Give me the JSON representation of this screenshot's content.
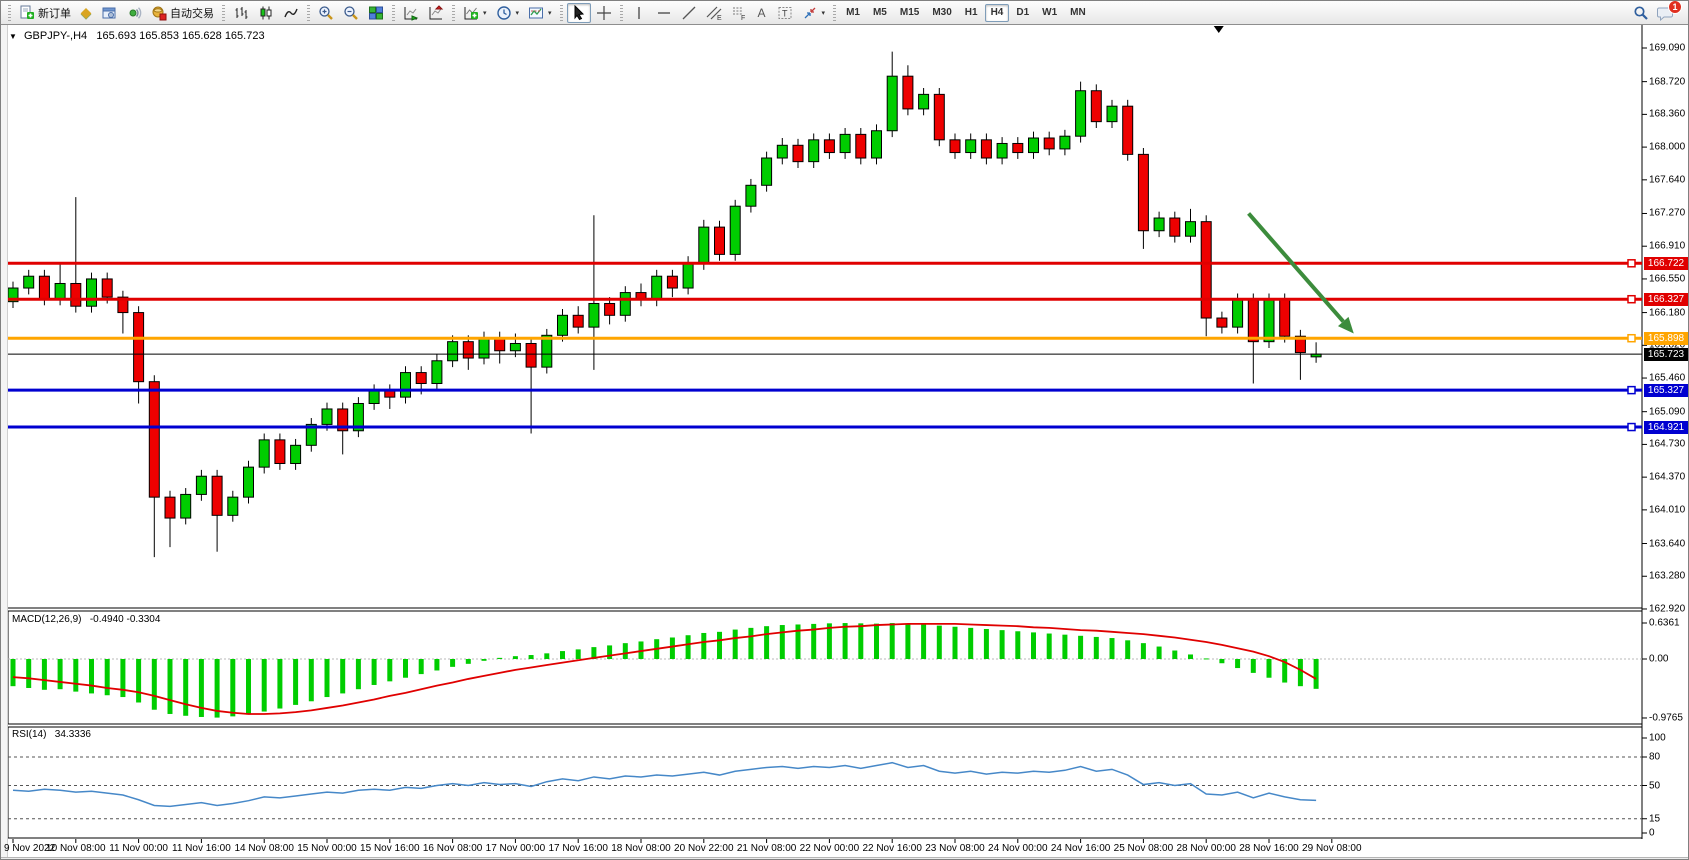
{
  "toolbar": {
    "new_order_label": "新订单",
    "auto_trading_label": "自动交易",
    "chat_badge": "1",
    "tool_letters": {
      "channel": "E",
      "fibonacci": "F",
      "text": "A",
      "text_label": "T"
    },
    "timeframes": [
      {
        "label": "M1",
        "active": false
      },
      {
        "label": "M5",
        "active": false
      },
      {
        "label": "M15",
        "active": false
      },
      {
        "label": "M30",
        "active": false
      },
      {
        "label": "H1",
        "active": false
      },
      {
        "label": "H4",
        "active": true
      },
      {
        "label": "D1",
        "active": false
      },
      {
        "label": "W1",
        "active": false
      },
      {
        "label": "MN",
        "active": false
      }
    ]
  },
  "icons": {
    "caret_down": "▼",
    "caret_small": "▾",
    "profile_glyph": "◆"
  },
  "chart": {
    "symbol": "GBPJPY-,H4",
    "ohlc": "165.693 165.853 165.628 165.723",
    "price_axis": [
      "169.090",
      "168.720",
      "168.360",
      "168.000",
      "167.640",
      "167.270",
      "166.910",
      "166.550",
      "166.180",
      "165.820",
      "165.460",
      "165.090",
      "164.730",
      "164.370",
      "164.010",
      "163.640",
      "163.280",
      "162.920"
    ],
    "hlines": [
      {
        "label": "166.722",
        "price": 166.722,
        "color": "#e00000",
        "thick": true
      },
      {
        "label": "166.327",
        "price": 166.327,
        "color": "#e00000",
        "thick": true
      },
      {
        "label": "165.898",
        "price": 165.898,
        "color": "#ffa500",
        "thick": true
      },
      {
        "label": "165.723",
        "price": 165.723,
        "color": "#000000",
        "thick": false
      },
      {
        "label": "165.327",
        "price": 165.327,
        "color": "#0000d0",
        "thick": true
      },
      {
        "label": "164.921",
        "price": 164.921,
        "color": "#0000d0",
        "thick": true
      }
    ]
  },
  "macd": {
    "label": "MACD(12,26,9)",
    "values": "-0.4940 -0.3304",
    "axis": [
      {
        "v": 0.6361,
        "label": "0.6361"
      },
      {
        "v": 0,
        "label": "0.00"
      },
      {
        "v": -0.9765,
        "label": "-0.9765"
      }
    ]
  },
  "rsi": {
    "label": "RSI(14)",
    "value": "34.3336",
    "axis": [
      {
        "v": 100,
        "label": "100",
        "dashed": false
      },
      {
        "v": 80,
        "label": "80",
        "dashed": true
      },
      {
        "v": 50,
        "label": "50",
        "dashed": true
      },
      {
        "v": 15,
        "label": "15",
        "dashed": true
      },
      {
        "v": 0,
        "label": "0",
        "dashed": false
      }
    ]
  },
  "time_axis": [
    "9 Nov 2022",
    "10 Nov 08:00",
    "11 Nov 00:00",
    "11 Nov 16:00",
    "14 Nov 08:00",
    "15 Nov 00:00",
    "15 Nov 16:00",
    "16 Nov 08:00",
    "17 Nov 00:00",
    "17 Nov 16:00",
    "18 Nov 08:00",
    "20 Nov 22:00",
    "21 Nov 08:00",
    "22 Nov 00:00",
    "22 Nov 16:00",
    "23 Nov 08:00",
    "24 Nov 00:00",
    "24 Nov 16:00",
    "25 Nov 08:00",
    "28 Nov 00:00",
    "28 Nov 16:00",
    "29 Nov 08:00"
  ],
  "chart_data": {
    "type": "candlestick",
    "symbol": "GBPJPY",
    "timeframe": "H4",
    "title": "GBPJPY-,H4",
    "ylim": [
      162.92,
      169.29
    ],
    "candles": [
      [
        166.3,
        166.52,
        166.23,
        166.45
      ],
      [
        166.45,
        166.65,
        166.38,
        166.58
      ],
      [
        166.58,
        166.65,
        166.26,
        166.33
      ],
      [
        166.33,
        166.72,
        166.26,
        166.5
      ],
      [
        166.5,
        167.45,
        166.18,
        166.25
      ],
      [
        166.25,
        166.62,
        166.18,
        166.55
      ],
      [
        166.55,
        166.62,
        166.28,
        166.35
      ],
      [
        166.35,
        166.42,
        165.95,
        166.18
      ],
      [
        166.18,
        166.25,
        165.18,
        165.42
      ],
      [
        165.42,
        165.49,
        163.49,
        164.15
      ],
      [
        164.15,
        164.22,
        163.6,
        163.92
      ],
      [
        163.92,
        164.25,
        163.85,
        164.18
      ],
      [
        164.18,
        164.45,
        164.11,
        164.38
      ],
      [
        164.38,
        164.45,
        163.55,
        163.95
      ],
      [
        163.95,
        164.22,
        163.88,
        164.15
      ],
      [
        164.15,
        164.55,
        164.08,
        164.48
      ],
      [
        164.48,
        164.85,
        164.41,
        164.78
      ],
      [
        164.78,
        164.85,
        164.45,
        164.52
      ],
      [
        164.52,
        164.79,
        164.45,
        164.72
      ],
      [
        164.72,
        165.02,
        164.65,
        164.95
      ],
      [
        164.95,
        165.19,
        164.88,
        165.12
      ],
      [
        165.12,
        165.19,
        164.62,
        164.88
      ],
      [
        164.88,
        165.25,
        164.81,
        165.18
      ],
      [
        165.18,
        165.39,
        165.11,
        165.32
      ],
      [
        165.32,
        165.39,
        165.12,
        165.25
      ],
      [
        165.25,
        165.59,
        165.18,
        165.52
      ],
      [
        165.52,
        165.59,
        165.28,
        165.4
      ],
      [
        165.4,
        165.72,
        165.33,
        165.65
      ],
      [
        165.65,
        165.93,
        165.58,
        165.86
      ],
      [
        165.86,
        165.93,
        165.55,
        165.68
      ],
      [
        165.68,
        165.97,
        165.61,
        165.9
      ],
      [
        165.9,
        165.97,
        165.62,
        165.76
      ],
      [
        165.76,
        165.95,
        165.69,
        165.84
      ],
      [
        165.84,
        165.91,
        164.85,
        165.58
      ],
      [
        165.58,
        166.0,
        165.51,
        165.93
      ],
      [
        165.93,
        166.22,
        165.86,
        166.15
      ],
      [
        166.15,
        166.25,
        165.95,
        166.02
      ],
      [
        166.02,
        167.25,
        165.55,
        166.28
      ],
      [
        166.28,
        166.35,
        166.05,
        166.15
      ],
      [
        166.15,
        166.47,
        166.08,
        166.4
      ],
      [
        166.4,
        166.5,
        166.25,
        166.32
      ],
      [
        166.32,
        166.65,
        166.25,
        166.58
      ],
      [
        166.58,
        166.65,
        166.35,
        166.45
      ],
      [
        166.45,
        166.8,
        166.38,
        166.72
      ],
      [
        166.72,
        167.2,
        166.65,
        167.12
      ],
      [
        167.12,
        167.19,
        166.75,
        166.82
      ],
      [
        166.82,
        167.42,
        166.75,
        167.35
      ],
      [
        167.35,
        167.65,
        167.28,
        167.58
      ],
      [
        167.58,
        167.95,
        167.51,
        167.88
      ],
      [
        167.88,
        168.1,
        167.81,
        168.02
      ],
      [
        168.02,
        168.09,
        167.77,
        167.84
      ],
      [
        167.84,
        168.15,
        167.77,
        168.08
      ],
      [
        168.08,
        168.15,
        167.87,
        167.94
      ],
      [
        167.94,
        168.21,
        167.87,
        168.14
      ],
      [
        168.14,
        168.21,
        167.81,
        167.88
      ],
      [
        167.88,
        168.25,
        167.81,
        168.18
      ],
      [
        168.18,
        169.05,
        168.11,
        168.78
      ],
      [
        168.78,
        168.9,
        168.35,
        168.42
      ],
      [
        168.42,
        168.65,
        168.35,
        168.58
      ],
      [
        168.58,
        168.65,
        168.01,
        168.08
      ],
      [
        168.08,
        168.15,
        167.87,
        167.94
      ],
      [
        167.94,
        168.15,
        167.87,
        168.08
      ],
      [
        168.08,
        168.15,
        167.81,
        167.88
      ],
      [
        167.88,
        168.11,
        167.81,
        168.04
      ],
      [
        168.04,
        168.11,
        167.87,
        167.94
      ],
      [
        167.94,
        168.17,
        167.87,
        168.1
      ],
      [
        168.1,
        168.17,
        167.91,
        167.98
      ],
      [
        167.98,
        168.19,
        167.91,
        168.12
      ],
      [
        168.12,
        168.72,
        168.05,
        168.62
      ],
      [
        168.62,
        168.69,
        168.21,
        168.28
      ],
      [
        168.28,
        168.52,
        168.21,
        168.45
      ],
      [
        168.45,
        168.52,
        167.85,
        167.92
      ],
      [
        167.92,
        167.99,
        166.88,
        167.08
      ],
      [
        167.08,
        167.29,
        167.01,
        167.22
      ],
      [
        167.22,
        167.29,
        166.95,
        167.02
      ],
      [
        167.02,
        167.32,
        166.95,
        167.18
      ],
      [
        167.18,
        167.25,
        165.92,
        166.12
      ],
      [
        166.12,
        166.19,
        165.95,
        166.02
      ],
      [
        166.02,
        166.39,
        165.95,
        166.32
      ],
      [
        166.32,
        166.39,
        165.4,
        165.86
      ],
      [
        165.86,
        166.39,
        165.79,
        166.32
      ],
      [
        166.32,
        166.39,
        165.85,
        165.92
      ],
      [
        165.92,
        165.99,
        165.44,
        165.74
      ],
      [
        165.693,
        165.853,
        165.628,
        165.723
      ]
    ],
    "indicators": {
      "macd": {
        "ylim": [
          -0.9765,
          0.6361
        ],
        "hist": [
          -0.45,
          -0.48,
          -0.51,
          -0.5,
          -0.54,
          -0.57,
          -0.6,
          -0.63,
          -0.72,
          -0.84,
          -0.91,
          -0.94,
          -0.96,
          -0.97,
          -0.95,
          -0.92,
          -0.87,
          -0.82,
          -0.76,
          -0.7,
          -0.63,
          -0.57,
          -0.5,
          -0.43,
          -0.37,
          -0.31,
          -0.25,
          -0.19,
          -0.13,
          -0.08,
          -0.03,
          0.02,
          0.05,
          0.07,
          0.1,
          0.14,
          0.17,
          0.21,
          0.24,
          0.28,
          0.31,
          0.35,
          0.38,
          0.42,
          0.46,
          0.48,
          0.52,
          0.55,
          0.58,
          0.6,
          0.61,
          0.62,
          0.63,
          0.635,
          0.63,
          0.625,
          0.635,
          0.62,
          0.61,
          0.59,
          0.57,
          0.55,
          0.53,
          0.51,
          0.49,
          0.47,
          0.45,
          0.43,
          0.41,
          0.39,
          0.37,
          0.33,
          0.28,
          0.22,
          0.15,
          0.08,
          0.01,
          -0.07,
          -0.15,
          -0.23,
          -0.31,
          -0.39,
          -0.45,
          -0.494
        ],
        "signal": [
          -0.3,
          -0.32,
          -0.35,
          -0.38,
          -0.41,
          -0.44,
          -0.48,
          -0.51,
          -0.55,
          -0.61,
          -0.68,
          -0.75,
          -0.81,
          -0.86,
          -0.89,
          -0.91,
          -0.91,
          -0.9,
          -0.88,
          -0.85,
          -0.81,
          -0.77,
          -0.72,
          -0.67,
          -0.61,
          -0.56,
          -0.5,
          -0.44,
          -0.39,
          -0.33,
          -0.28,
          -0.23,
          -0.18,
          -0.14,
          -0.1,
          -0.06,
          -0.02,
          0.02,
          0.06,
          0.1,
          0.14,
          0.18,
          0.22,
          0.26,
          0.3,
          0.33,
          0.37,
          0.4,
          0.44,
          0.47,
          0.5,
          0.52,
          0.55,
          0.57,
          0.58,
          0.6,
          0.61,
          0.62,
          0.62,
          0.62,
          0.62,
          0.61,
          0.6,
          0.59,
          0.58,
          0.56,
          0.55,
          0.53,
          0.51,
          0.5,
          0.48,
          0.46,
          0.44,
          0.41,
          0.38,
          0.34,
          0.3,
          0.25,
          0.19,
          0.13,
          0.05,
          -0.05,
          -0.18,
          -0.3304
        ]
      },
      "rsi": {
        "ylim": [
          0,
          100
        ],
        "levels": [
          80,
          50,
          15
        ],
        "values": [
          45,
          44,
          46,
          45,
          43,
          44,
          42,
          40,
          35,
          29,
          28,
          30,
          32,
          29,
          31,
          34,
          38,
          37,
          39,
          41,
          43,
          42,
          45,
          46,
          45,
          48,
          47,
          50,
          52,
          50,
          53,
          51,
          52,
          49,
          54,
          57,
          55,
          59,
          57,
          60,
          59,
          61,
          60,
          62,
          64,
          61,
          65,
          67,
          69,
          70,
          68,
          70,
          69,
          71,
          68,
          71,
          74,
          69,
          71,
          65,
          63,
          65,
          62,
          64,
          63,
          65,
          64,
          66,
          70,
          65,
          67,
          61,
          51,
          53,
          50,
          52,
          41,
          40,
          43,
          37,
          42,
          38,
          35,
          34.3
        ]
      }
    },
    "annotations": {
      "arrow": {
        "from_bar": 78.7,
        "from_price": 167.27,
        "to_bar": 85.4,
        "to_price": 165.95,
        "color": "#3c8c3c"
      },
      "shift_marker_bar": 76.8
    }
  },
  "colors": {
    "bull": "#00cd00",
    "bear": "#ee0000",
    "wick": "#000000",
    "macd_hist": "#00cd00",
    "macd_signal": "#e00000",
    "rsi_line": "#4688c8"
  }
}
